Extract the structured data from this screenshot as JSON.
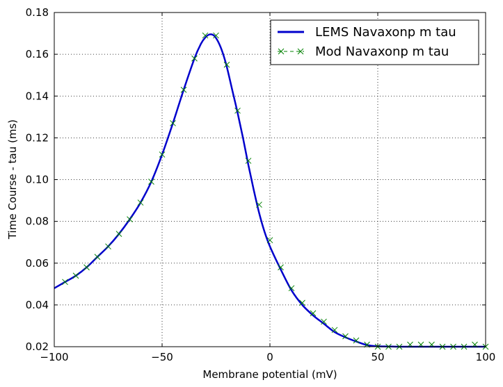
{
  "chart_data": {
    "type": "line",
    "xlabel": "Membrane potential (mV)",
    "ylabel": "Time Course - tau (ms)",
    "xlim": [
      -100,
      100
    ],
    "ylim": [
      0.02,
      0.18
    ],
    "xticks": [
      -100,
      -50,
      0,
      50,
      100
    ],
    "xtick_labels": [
      "−100",
      "−50",
      "0",
      "50",
      "100"
    ],
    "yticks": [
      0.02,
      0.04,
      0.06,
      0.08,
      0.1,
      0.12,
      0.14,
      0.16,
      0.18
    ],
    "ytick_labels": [
      "0.02",
      "0.04",
      "0.06",
      "0.08",
      "0.10",
      "0.12",
      "0.14",
      "0.16",
      "0.18"
    ],
    "grid": true,
    "legend_position": "top-right",
    "series": [
      {
        "name": "LEMS Navaxonp m tau",
        "style": "line",
        "color": "#0000cc",
        "x": [
          -100,
          -95,
          -90,
          -85,
          -80,
          -75,
          -70,
          -65,
          -60,
          -55,
          -50,
          -45,
          -40,
          -35,
          -32,
          -30,
          -28,
          -26,
          -24,
          -22,
          -20,
          -17.5,
          -15,
          -12.5,
          -10,
          -7.5,
          -5,
          -2.5,
          0,
          5,
          10,
          15,
          20,
          25,
          30,
          35,
          40,
          45,
          50,
          55,
          60,
          65,
          70,
          75,
          80,
          85,
          90,
          95,
          100
        ],
        "y": [
          0.048,
          0.051,
          0.054,
          0.058,
          0.063,
          0.068,
          0.074,
          0.081,
          0.089,
          0.099,
          0.112,
          0.127,
          0.143,
          0.158,
          0.165,
          0.168,
          0.1695,
          0.169,
          0.166,
          0.161,
          0.154,
          0.143,
          0.132,
          0.12,
          0.107,
          0.095,
          0.084,
          0.075,
          0.068,
          0.057,
          0.047,
          0.04,
          0.035,
          0.031,
          0.027,
          0.0245,
          0.0225,
          0.0208,
          0.0202,
          0.0201,
          0.02,
          0.02,
          0.02,
          0.02,
          0.02,
          0.02,
          0.02,
          0.02,
          0.02
        ]
      },
      {
        "name": "Mod Navaxonp m tau",
        "style": "markers",
        "marker": "x",
        "color": "#008000",
        "x": [
          -95,
          -90,
          -85,
          -80,
          -75,
          -70,
          -65,
          -60,
          -55,
          -50,
          -45,
          -40,
          -35,
          -30,
          -25,
          -20,
          -15,
          -10,
          -5,
          0,
          5,
          10,
          15,
          20,
          25,
          30,
          35,
          40,
          45,
          50,
          55,
          60,
          65,
          70,
          75,
          80,
          85,
          90,
          95,
          100
        ],
        "y": [
          0.051,
          0.054,
          0.058,
          0.063,
          0.068,
          0.074,
          0.081,
          0.089,
          0.099,
          0.112,
          0.127,
          0.143,
          0.158,
          0.169,
          0.169,
          0.155,
          0.133,
          0.109,
          0.088,
          0.071,
          0.058,
          0.048,
          0.041,
          0.036,
          0.032,
          0.028,
          0.025,
          0.023,
          0.021,
          0.02,
          0.02,
          0.02,
          0.021,
          0.021,
          0.021,
          0.02,
          0.02,
          0.02,
          0.021,
          0.02
        ]
      }
    ]
  }
}
